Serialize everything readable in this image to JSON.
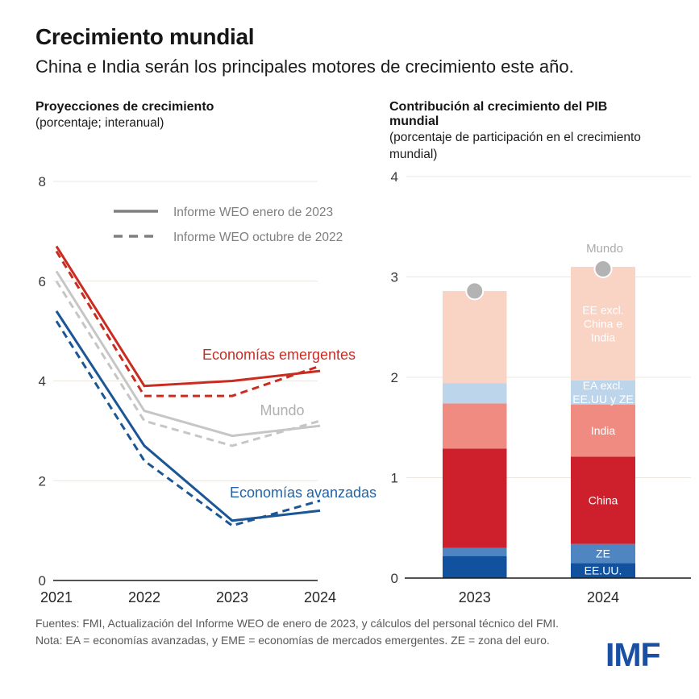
{
  "header": {
    "title": "Crecimiento mundial",
    "subtitle": "China e India serán los principales motores de crecimiento este año."
  },
  "left_panel": {
    "title": "Proyecciones de crecimiento",
    "subtitle": "(porcentaje; interanual)"
  },
  "right_panel": {
    "title": "Contribución al crecimiento del PIB mundial",
    "subtitle": "(porcentaje de participación en el crecimiento mundial)"
  },
  "chart_data": [
    {
      "type": "line",
      "title": "Proyecciones de crecimiento",
      "xlabel": "",
      "ylabel": "porcentaje; interanual",
      "x": [
        "2021",
        "2022",
        "2023",
        "2024"
      ],
      "ylim": [
        0,
        8
      ],
      "yticks": [
        0,
        2,
        4,
        6,
        8
      ],
      "grid": true,
      "legend_position": "top-inside",
      "legend": [
        {
          "label": "Informe WEO enero de 2023",
          "style": "solid",
          "color": "#7f7f7f"
        },
        {
          "label": "Informe WEO octubre de 2022",
          "style": "dashed",
          "color": "#7f7f7f"
        }
      ],
      "series": [
        {
          "name": "Mundo",
          "vintage": "Informe WEO enero de 2023",
          "style": "solid",
          "color": "#c6c6c6",
          "values": [
            6.2,
            3.4,
            2.9,
            3.1
          ]
        },
        {
          "name": "Mundo",
          "vintage": "Informe WEO octubre de 2022",
          "style": "dashed",
          "color": "#c6c6c6",
          "values": [
            6.0,
            3.2,
            2.7,
            3.2
          ]
        },
        {
          "name": "Economías emergentes",
          "vintage": "Informe WEO enero de 2023",
          "style": "solid",
          "color": "#c92d22",
          "values": [
            6.7,
            3.9,
            4.0,
            4.2
          ]
        },
        {
          "name": "Economías emergentes",
          "vintage": "Informe WEO octubre de 2022",
          "style": "dashed",
          "color": "#c92d22",
          "values": [
            6.6,
            3.7,
            3.7,
            4.3
          ]
        },
        {
          "name": "Economías avanzadas",
          "vintage": "Informe WEO enero de 2023",
          "style": "solid",
          "color": "#1b5696",
          "values": [
            5.4,
            2.7,
            1.2,
            1.4
          ]
        },
        {
          "name": "Economías avanzadas",
          "vintage": "Informe WEO octubre de 2022",
          "style": "dashed",
          "color": "#1b5696",
          "values": [
            5.2,
            2.4,
            1.1,
            1.6
          ]
        }
      ],
      "annotations": [
        {
          "text": "Economías emergentes",
          "color": "#c92d22"
        },
        {
          "text": "Mundo",
          "color": "#b0b0b0"
        },
        {
          "text": "Economías avanzadas",
          "color": "#1f63ad"
        }
      ]
    },
    {
      "type": "bar",
      "stacked": true,
      "title": "Contribución al crecimiento del PIB mundial",
      "ylabel": "porcentaje de participación en el crecimiento mundial",
      "categories": [
        "2023",
        "2024"
      ],
      "ylim": [
        0,
        4
      ],
      "yticks": [
        0,
        1,
        2,
        3,
        4
      ],
      "grid": true,
      "segments": [
        {
          "label": "EE.UU.",
          "lines": [
            "EE.UU."
          ],
          "color": "#11519e",
          "values": [
            0.22,
            0.15
          ]
        },
        {
          "label": "ZE",
          "lines": [
            "ZE"
          ],
          "color": "#4f86c2",
          "values": [
            0.08,
            0.19
          ]
        },
        {
          "label": "China",
          "lines": [
            "China"
          ],
          "color": "#ce202c",
          "values": [
            0.99,
            0.87
          ]
        },
        {
          "label": "India",
          "lines": [
            "India"
          ],
          "color": "#ef8b80",
          "values": [
            0.45,
            0.52
          ]
        },
        {
          "label": "EA excl. EE.UU y ZE",
          "lines": [
            "EA excl.",
            "EE.UU y ZE"
          ],
          "color": "#bcd5eb",
          "values": [
            0.2,
            0.24
          ]
        },
        {
          "label": "EE excl. China e India",
          "lines": [
            "EE excl.",
            "China e",
            "India"
          ],
          "color": "#f9d3c4",
          "values": [
            0.92,
            1.13
          ]
        }
      ],
      "totals": [
        2.86,
        3.1
      ],
      "world_marker": {
        "label": "Mundo",
        "color": "#b3b3b3",
        "values": [
          2.86,
          3.08
        ]
      }
    }
  ],
  "footer": {
    "source": "Fuentes: FMI, Actualización del Informe WEO de enero de 2023, y cálculos del personal técnico del FMI.",
    "note": "Nota: EA = economías avanzadas, y EME = economías de mercados emergentes.  ZE = zona del euro.",
    "logo": "IMF"
  }
}
